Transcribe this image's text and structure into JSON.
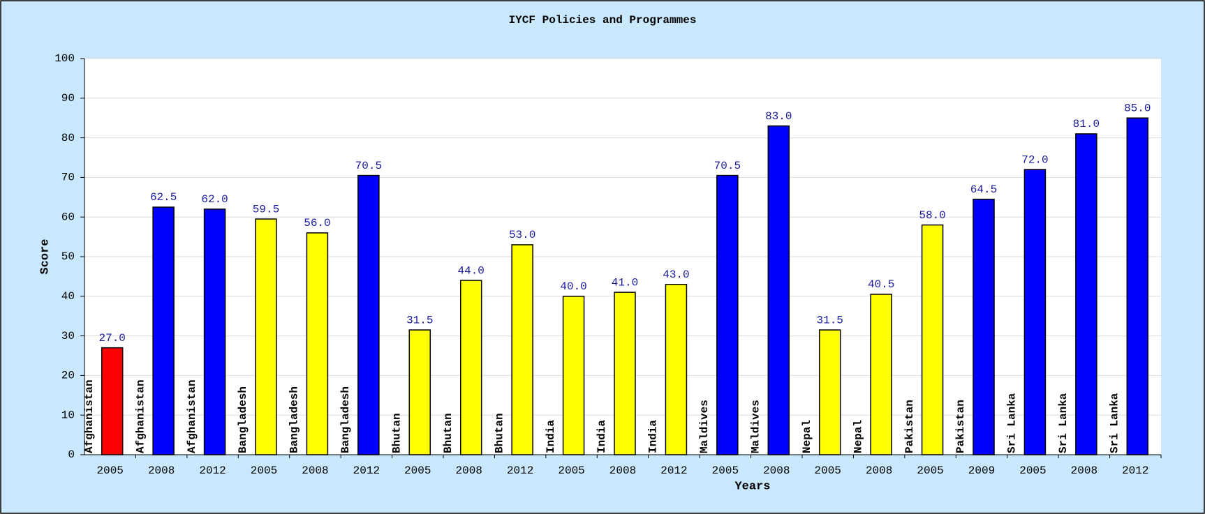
{
  "chart_data": {
    "type": "bar",
    "title": "IYCF Policies and Programmes",
    "x_label": "Years",
    "y_label": "Score",
    "categories": [
      "2005",
      "2008",
      "2012",
      "2005",
      "2008",
      "2012",
      "2005",
      "2008",
      "2012",
      "2005",
      "2008",
      "2012",
      "2005",
      "2008",
      "2005",
      "2008",
      "2005",
      "2009",
      "2005",
      "2008",
      "2012"
    ],
    "bar_labels": [
      "Afghanistan",
      "Afghanistan",
      "Afghanistan",
      "Bangladesh",
      "Bangladesh",
      "Bangladesh",
      "Bhutan",
      "Bhutan",
      "Bhutan",
      "India",
      "India",
      "India",
      "Maldives",
      "Maldives",
      "Nepal",
      "Nepal",
      "Pakistan",
      "Pakistan",
      "Sri Lanka",
      "Sri Lanka",
      "Sri Lanka"
    ],
    "values": [
      27,
      62.5,
      62,
      59.5,
      56,
      70.5,
      31.5,
      44,
      53,
      40,
      41,
      43,
      70.5,
      83,
      31.5,
      40.5,
      58,
      64.5,
      72,
      81,
      85
    ],
    "value_labels": [
      "27.0",
      "62.5",
      "62.0",
      "59.5",
      "56.0",
      "70.5",
      "31.5",
      "44.0",
      "53.0",
      "40.0",
      "41.0",
      "43.0",
      "70.5",
      "83.0",
      "31.5",
      "40.5",
      "58.0",
      "64.5",
      "72.0",
      "81.0",
      "85.0"
    ],
    "colors": [
      "#ff0000",
      "#0000ff",
      "#0000ff",
      "#ffff00",
      "#ffff00",
      "#0000ff",
      "#ffff00",
      "#ffff00",
      "#ffff00",
      "#ffff00",
      "#ffff00",
      "#ffff00",
      "#0000ff",
      "#0000ff",
      "#ffff00",
      "#ffff00",
      "#ffff00",
      "#0000ff",
      "#0000ff",
      "#0000ff",
      "#0000ff"
    ],
    "ylim": [
      0,
      100
    ],
    "yticks": [
      0,
      10,
      20,
      30,
      40,
      50,
      60,
      70,
      80,
      90,
      100
    ],
    "grid": true
  }
}
